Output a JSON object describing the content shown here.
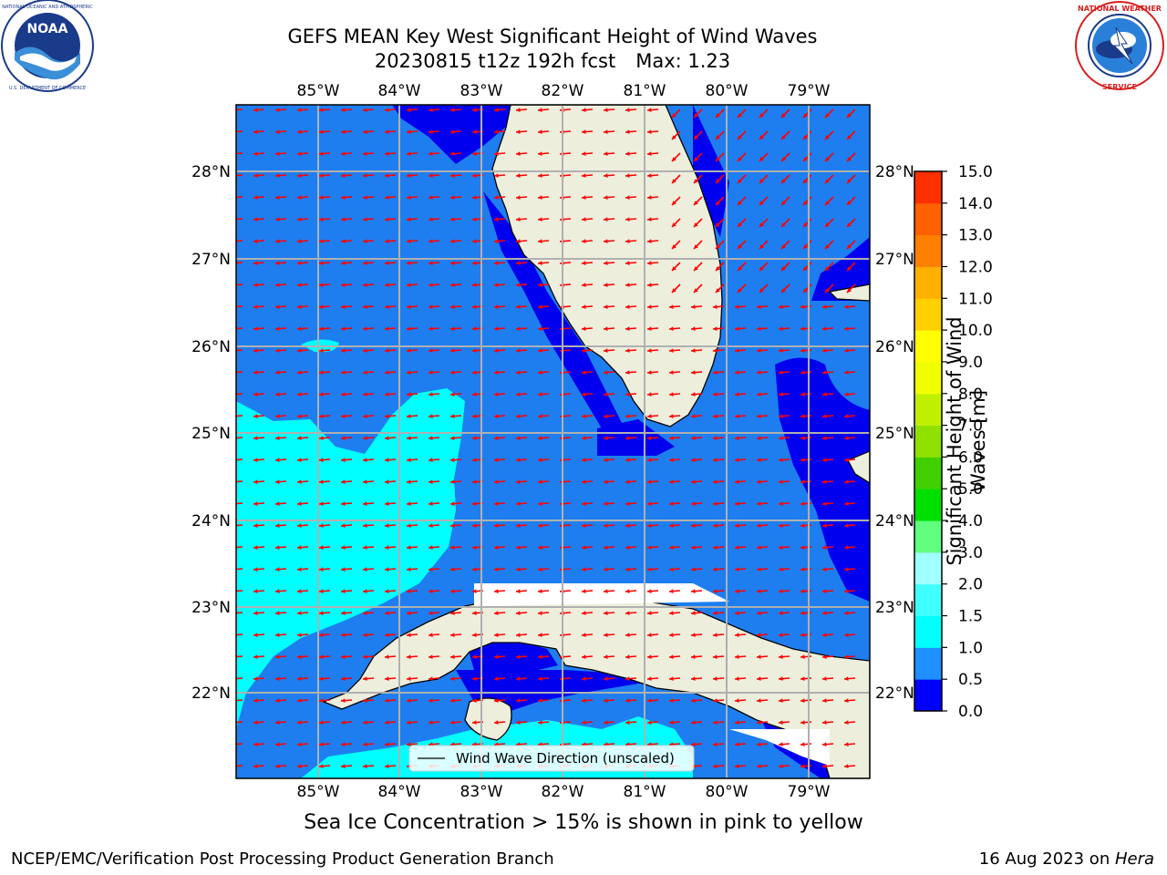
{
  "header": {
    "title_line1": "GEFS MEAN Key West Significant Height of Wind Waves",
    "run": "20230815 t12z 192h fcst",
    "max_label": "Max: 1.23"
  },
  "logos": {
    "left": {
      "name": "noaa-logo",
      "text": "NOAA",
      "ring_text": "NATIONAL OCEANIC AND ATMOSPHERIC ADMINISTRATION · U.S. DEPARTMENT OF COMMERCE"
    },
    "right": {
      "name": "nws-logo",
      "ring_text": "NATIONAL WEATHER SERVICE"
    }
  },
  "map": {
    "lon_labels": [
      "85°W",
      "84°W",
      "83°W",
      "82°W",
      "81°W",
      "80°W",
      "79°W"
    ],
    "lat_labels": [
      "28°N",
      "27°N",
      "26°N",
      "25°N",
      "24°N",
      "23°N",
      "22°N"
    ],
    "legend_label": "Wind Wave Direction (unscaled)",
    "colors": {
      "ocean_deep": "#0000ee",
      "ocean_mid": "#1e7ef0",
      "ocean_cyan": "#00ffff",
      "land": "#eeeedd",
      "arrow": "#ff0000",
      "grid": "#b0b0b0"
    }
  },
  "colorbar": {
    "label": "Significant Height of Wind Waves [m]",
    "ticks": [
      "0.0",
      "0.5",
      "1.0",
      "1.5",
      "2.0",
      "3.0",
      "4.0",
      "5.0",
      "6.0",
      "7.0",
      "8.0",
      "9.0",
      "10.0",
      "11.0",
      "12.0",
      "13.0",
      "14.0",
      "15.0"
    ],
    "colors": [
      "#0000ff",
      "#1e90ff",
      "#00ffff",
      "#40ffff",
      "#a0ffff",
      "#60ff80",
      "#00e000",
      "#40d000",
      "#90e000",
      "#c0f000",
      "#f0ff00",
      "#ffff00",
      "#ffd000",
      "#ffb000",
      "#ff8000",
      "#ff6000",
      "#ff3000"
    ]
  },
  "sea_ice_note": "Sea Ice Concentration > 15% is shown in pink to yellow",
  "footer": {
    "left": "NCEP/EMC/Verification Post Processing Product Generation Branch",
    "date": "16 Aug 2023 on ",
    "host": "Hera"
  }
}
